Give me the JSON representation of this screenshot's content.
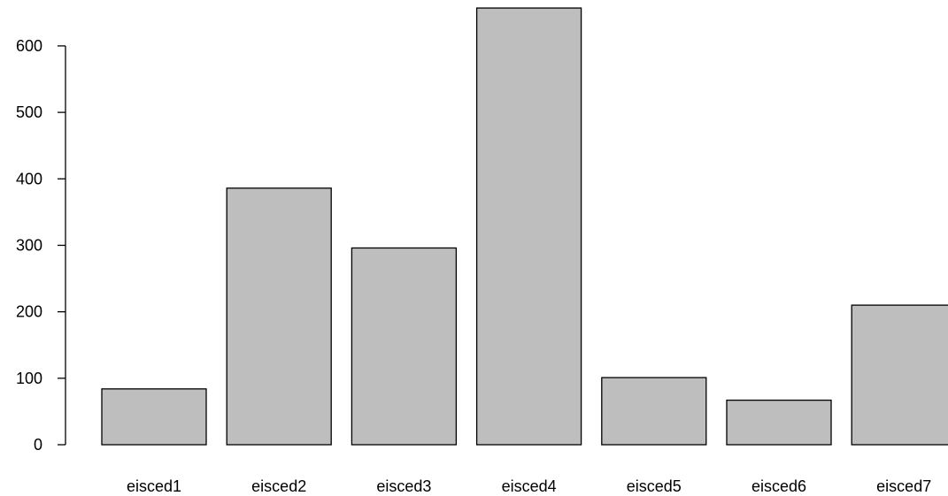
{
  "chart_data": {
    "type": "bar",
    "title": "",
    "xlabel": "",
    "ylabel": "",
    "categories": [
      "eisced1",
      "eisced2",
      "eisced3",
      "eisced4",
      "eisced5",
      "eisced6",
      "eisced7"
    ],
    "values": [
      84,
      386,
      296,
      657,
      101,
      67,
      210
    ],
    "ylim": [
      0,
      657
    ],
    "yticks": [
      0,
      100,
      200,
      300,
      400,
      500,
      600
    ],
    "bar_color": "#bebebe",
    "border_color": "#000000",
    "grid": false,
    "legend": "none"
  }
}
